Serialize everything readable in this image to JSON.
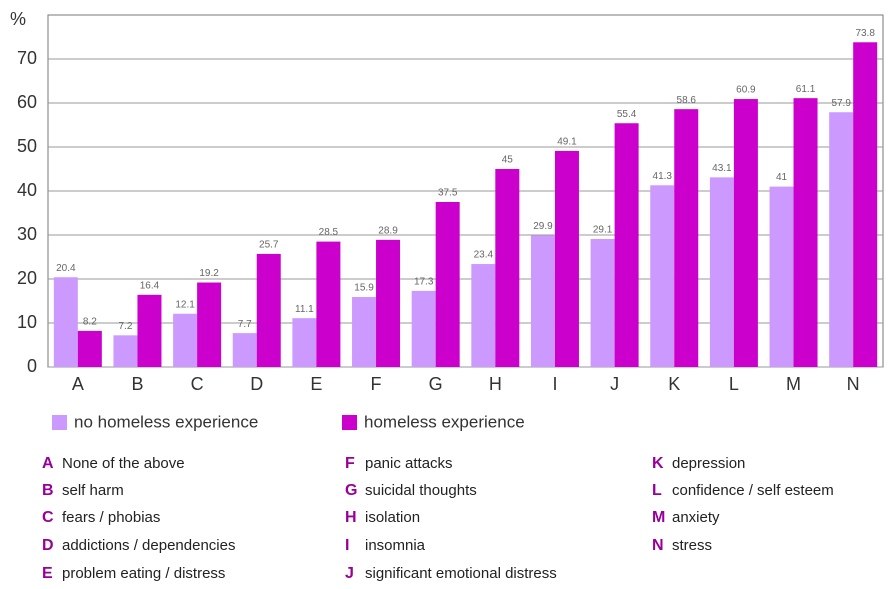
{
  "chart_data": {
    "type": "bar",
    "y_label": "%",
    "categories": [
      "A",
      "B",
      "C",
      "D",
      "E",
      "F",
      "G",
      "H",
      "I",
      "J",
      "K",
      "L",
      "M",
      "N"
    ],
    "series": [
      {
        "name": "no homeless experience",
        "color": "#cc99ff",
        "values": [
          20.4,
          7.2,
          12.1,
          7.7,
          11.1,
          15.9,
          17.3,
          23.4,
          29.9,
          29.1,
          41.3,
          43.1,
          41,
          57.9
        ]
      },
      {
        "name": "homeless experience",
        "color": "#cc00cc",
        "values": [
          8.2,
          16.4,
          19.2,
          25.7,
          28.5,
          28.9,
          37.5,
          45,
          49.1,
          55.4,
          58.6,
          60.9,
          61.1,
          73.8
        ]
      }
    ],
    "ylim": [
      0,
      80
    ],
    "yticks": [
      0,
      10,
      20,
      30,
      40,
      50,
      60,
      70
    ],
    "grid": true,
    "key": [
      {
        "letter": "A",
        "text": "None of the above"
      },
      {
        "letter": "B",
        "text": "self harm"
      },
      {
        "letter": "C",
        "text": "fears / phobias"
      },
      {
        "letter": "D",
        "text": "addictions / dependencies"
      },
      {
        "letter": "E",
        "text": "problem  eating / distress"
      },
      {
        "letter": "F",
        "text": "panic attacks"
      },
      {
        "letter": "G",
        "text": "suicidal thoughts"
      },
      {
        "letter": "H",
        "text": "isolation"
      },
      {
        "letter": "I",
        "text": "insomnia"
      },
      {
        "letter": "J",
        "text": "significant emotional distress"
      },
      {
        "letter": "K",
        "text": "depression"
      },
      {
        "letter": "L",
        "text": "confidence / self esteem"
      },
      {
        "letter": "M",
        "text": "anxiety"
      },
      {
        "letter": "N",
        "text": "stress"
      }
    ]
  }
}
